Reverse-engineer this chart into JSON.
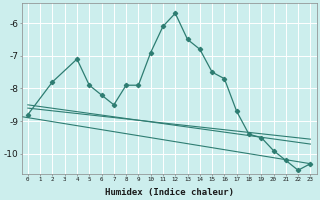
{
  "xlabel": "Humidex (Indice chaleur)",
  "background_color": "#cceeed",
  "grid_color": "#ffffff",
  "line_color": "#2e7d72",
  "xlim": [
    -0.5,
    23.5
  ],
  "ylim": [
    -10.6,
    -5.4
  ],
  "yticks": [
    -10,
    -9,
    -8,
    -7,
    -6
  ],
  "xticks": [
    0,
    1,
    2,
    3,
    4,
    5,
    6,
    7,
    8,
    9,
    10,
    11,
    12,
    13,
    14,
    15,
    16,
    17,
    18,
    19,
    20,
    21,
    22,
    23
  ],
  "series": [
    [
      0,
      -8.8
    ],
    [
      2,
      -7.8
    ],
    [
      4,
      -7.1
    ],
    [
      5,
      -7.9
    ],
    [
      6,
      -8.2
    ],
    [
      7,
      -8.5
    ],
    [
      8,
      -7.9
    ],
    [
      9,
      -7.9
    ],
    [
      10,
      -6.9
    ],
    [
      11,
      -6.1
    ],
    [
      12,
      -5.7
    ],
    [
      13,
      -6.5
    ],
    [
      14,
      -6.8
    ],
    [
      15,
      -7.5
    ],
    [
      16,
      -7.7
    ],
    [
      17,
      -8.7
    ],
    [
      18,
      -9.4
    ],
    [
      19,
      -9.5
    ],
    [
      20,
      -9.9
    ],
    [
      21,
      -10.2
    ],
    [
      22,
      -10.5
    ],
    [
      23,
      -10.3
    ]
  ],
  "linear_series": [
    [
      [
        0,
        23
      ],
      [
        -8.5,
        -9.7
      ]
    ],
    [
      [
        0,
        23
      ],
      [
        -8.6,
        -9.55
      ]
    ],
    [
      [
        -1.5,
        23
      ],
      [
        -8.8,
        -10.3
      ]
    ]
  ]
}
